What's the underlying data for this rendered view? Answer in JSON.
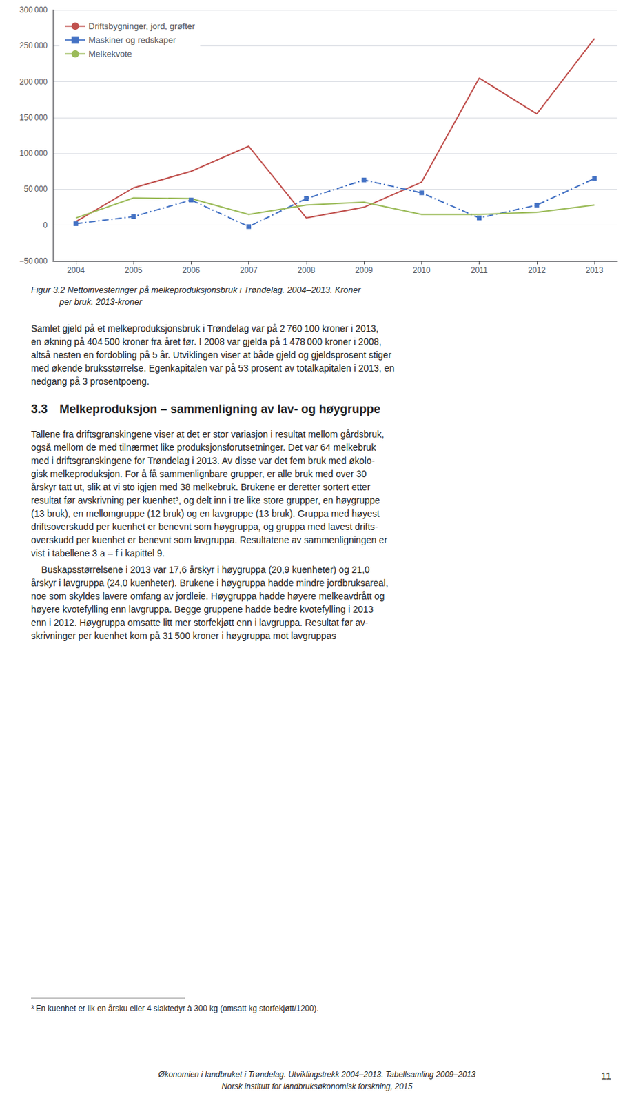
{
  "chart_data": {
    "type": "line",
    "x": [
      2004,
      2005,
      2006,
      2007,
      2008,
      2009,
      2010,
      2011,
      2012,
      2013
    ],
    "xlim": [
      2003.6,
      2013.4
    ],
    "xticks": [
      2004,
      2005,
      2006,
      2007,
      2008,
      2009,
      2010,
      2011,
      2012,
      2013
    ],
    "ylim": [
      -50000,
      300000
    ],
    "yticks": [
      {
        "value": -50000,
        "label": "−50 000"
      },
      0,
      {
        "value": 50000,
        "label": "50 000"
      },
      {
        "value": 100000,
        "label": "100 000"
      },
      {
        "value": 150000,
        "label": "150 000"
      },
      {
        "value": 200000,
        "label": "200 000"
      },
      {
        "value": 250000,
        "label": "250 000"
      },
      {
        "value": 300000,
        "label": "300 000"
      }
    ],
    "grid": true,
    "legend": "upper left",
    "series": [
      {
        "name": "Driftsbygninger, jord, grøfter",
        "color": "#C0504D",
        "line_style": "solid",
        "marker": "none",
        "values": [
          5000,
          52000,
          75000,
          110000,
          10000,
          25000,
          60000,
          205000,
          155000,
          260000
        ]
      },
      {
        "name": "Maskiner og redskaper",
        "color": "#4472C4",
        "line_style": "dashdot",
        "marker": "square",
        "values": [
          2000,
          12000,
          35000,
          -2000,
          37000,
          63000,
          45000,
          10000,
          28000,
          65000
        ]
      },
      {
        "name": "Melkekvote",
        "color": "#9BBB59",
        "line_style": "solid",
        "marker": "none",
        "values": [
          10000,
          38000,
          37000,
          15000,
          28000,
          32000,
          15000,
          15000,
          18000,
          28000
        ]
      }
    ],
    "caption": [
      "Figur 3.2 Nettoinvesteringer på melkeproduksjonsbruk i Trøndelag. 2004–2013. Kroner",
      "per bruk. 2013-kroner"
    ],
    "section_title": "3.3 Melkeproduksjon – sammenligning av lav- og høygruppe",
    "paragraphs": [
      [
        "Samlet gjeld på et melkeproduksjonsbruk i Trøndelag var på 2 760 100 kroner i 2013,",
        "en økning på 404 500 kroner fra året før. I 2008 var gjelda på 1 478 000 kroner i 2008,",
        "altså nesten en fordobling på 5 år. Utviklingen viser at både gjeld og gjeldsprosent stiger",
        "med økende bruksstørrelse. Egenkapitalen var på 53 prosent av totalkapitalen i 2013, en",
        "nedgang på 3 prosentpoeng."
      ],
      [
        "Tallene fra driftsgranskingene viser at det er stor variasjon i resultat mellom gårdsbruk,",
        "også mellom de med tilnærmet like produksjonsforutsetninger. Det var 64 melkebruk",
        "med i driftsgranskingene for Trøndelag i 2013. Av disse var det fem bruk med økolo-",
        "gisk melkeproduksjon. For å få sammenlignbare grupper, er alle bruk med over 30",
        "årskyr tatt ut, slik at vi sto igjen med 38 melkebruk. Brukene er deretter sortert etter",
        "resultat før avskrivning per kuenhet³, og delt inn i tre like store grupper, en høygruppe",
        "(13 bruk), en mellomgruppe (12 bruk) og en lavgruppe (13 bruk). Gruppa med høyest",
        "driftsoverskudd per kuenhet er benevnt som høygruppa, og gruppa med lavest drifts-",
        "overskudd per kuenhet er benevnt som lavgruppa. Resultatene av sammenligningen er",
        "vist i tabellene 3 a – f i kapittel 9."
      ],
      [
        "    Buskapsstørrelsene i 2013 var 17,6 årskyr i høygruppa (20,9 kuenheter) og 21,0",
        "årskyr i lavgruppa (24,0 kuenheter). Brukene i høygruppa hadde mindre jordbruksareal,",
        "noe som skyldes lavere omfang av jordleie. Høygruppa hadde høyere melkeavdrått og",
        "høyere kvotefylling enn lavgruppa. Begge gruppene hadde bedre kvotefylling i 2013",
        "enn i 2012. Høygruppa omsatte litt mer storfekjøtt enn i lavgruppa. Resultat før av-",
        "skrivninger per kuenhet kom på 31 500 kroner i høygruppa mot lavgruppas"
      ]
    ],
    "footnote": "³ En kuenhet er lik en årsku eller 4 slaktedyr à 300 kg (omsatt kg storfekjøtt/1200).",
    "footer": [
      "Økonomien i landbruket i Trøndelag. Utviklingstrekk 2004–2013. Tabellsamling 2009–2013",
      "Norsk institutt for landbruksøkonomisk forskning, 2015"
    ],
    "page_number": "11"
  }
}
